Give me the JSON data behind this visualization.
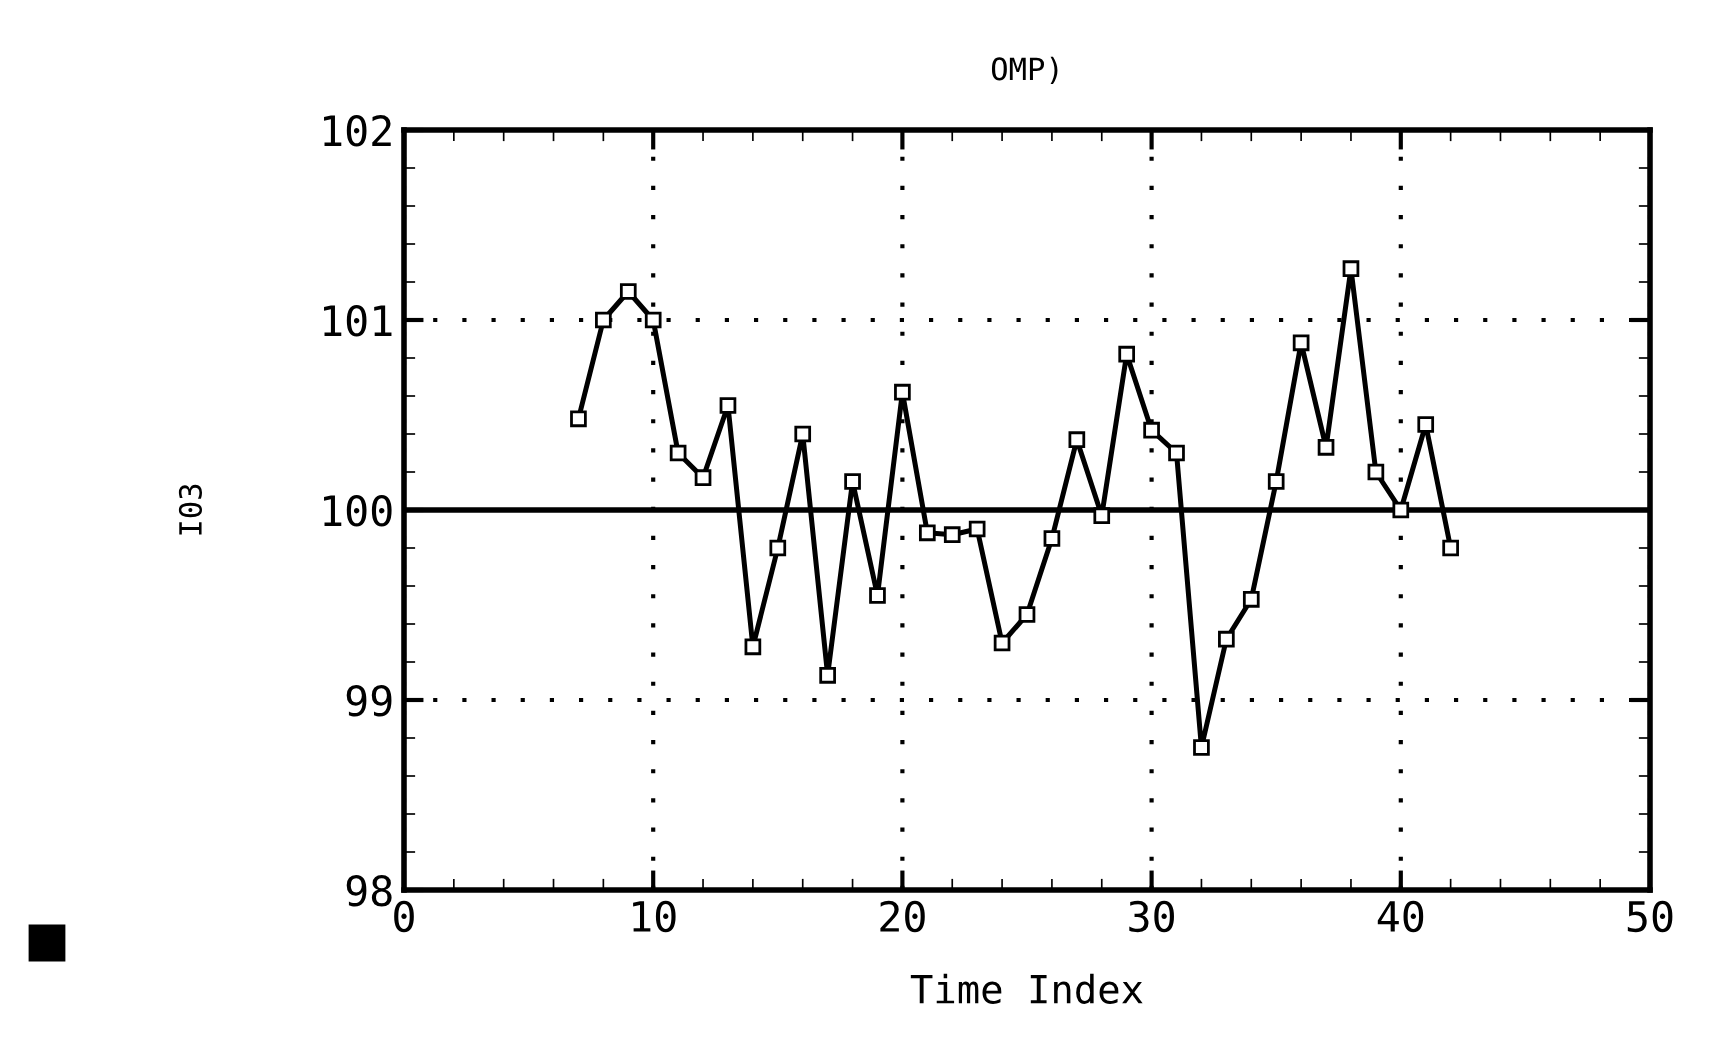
{
  "chart_data": {
    "type": "line",
    "title": "OMP)",
    "xlabel": "Time Index",
    "ylabel": "I03",
    "x": [
      7,
      8,
      9,
      10,
      11,
      12,
      13,
      14,
      15,
      16,
      17,
      18,
      19,
      20,
      21,
      22,
      23,
      24,
      25,
      26,
      27,
      28,
      29,
      30,
      31,
      32,
      33,
      34,
      35,
      36,
      37,
      38,
      39,
      40,
      41,
      42
    ],
    "series": [
      {
        "color": "#000000",
        "values": [
          100.48,
          101.0,
          101.15,
          101.0,
          100.3,
          100.17,
          100.55,
          99.28,
          99.8,
          100.4,
          99.13,
          100.15,
          99.55,
          100.62,
          99.88,
          99.87,
          99.9,
          99.3,
          99.45,
          99.85,
          100.37,
          99.97,
          100.82,
          100.42,
          100.3,
          98.75,
          99.32,
          99.53,
          100.15,
          100.88,
          100.33,
          101.27,
          100.2,
          100.0,
          100.45,
          99.8
        ]
      }
    ],
    "xlim": [
      0,
      50
    ],
    "xticks": [
      0,
      10,
      20,
      30,
      40,
      50
    ],
    "ylim": [
      98,
      102
    ],
    "yticks": [
      98,
      99,
      100,
      101,
      102
    ],
    "grid": true,
    "marker": "square",
    "line_style": "solid",
    "ref_lines": [
      {
        "axis": "y",
        "value": 100,
        "color": "#000000",
        "line_style": "solid"
      }
    ]
  }
}
